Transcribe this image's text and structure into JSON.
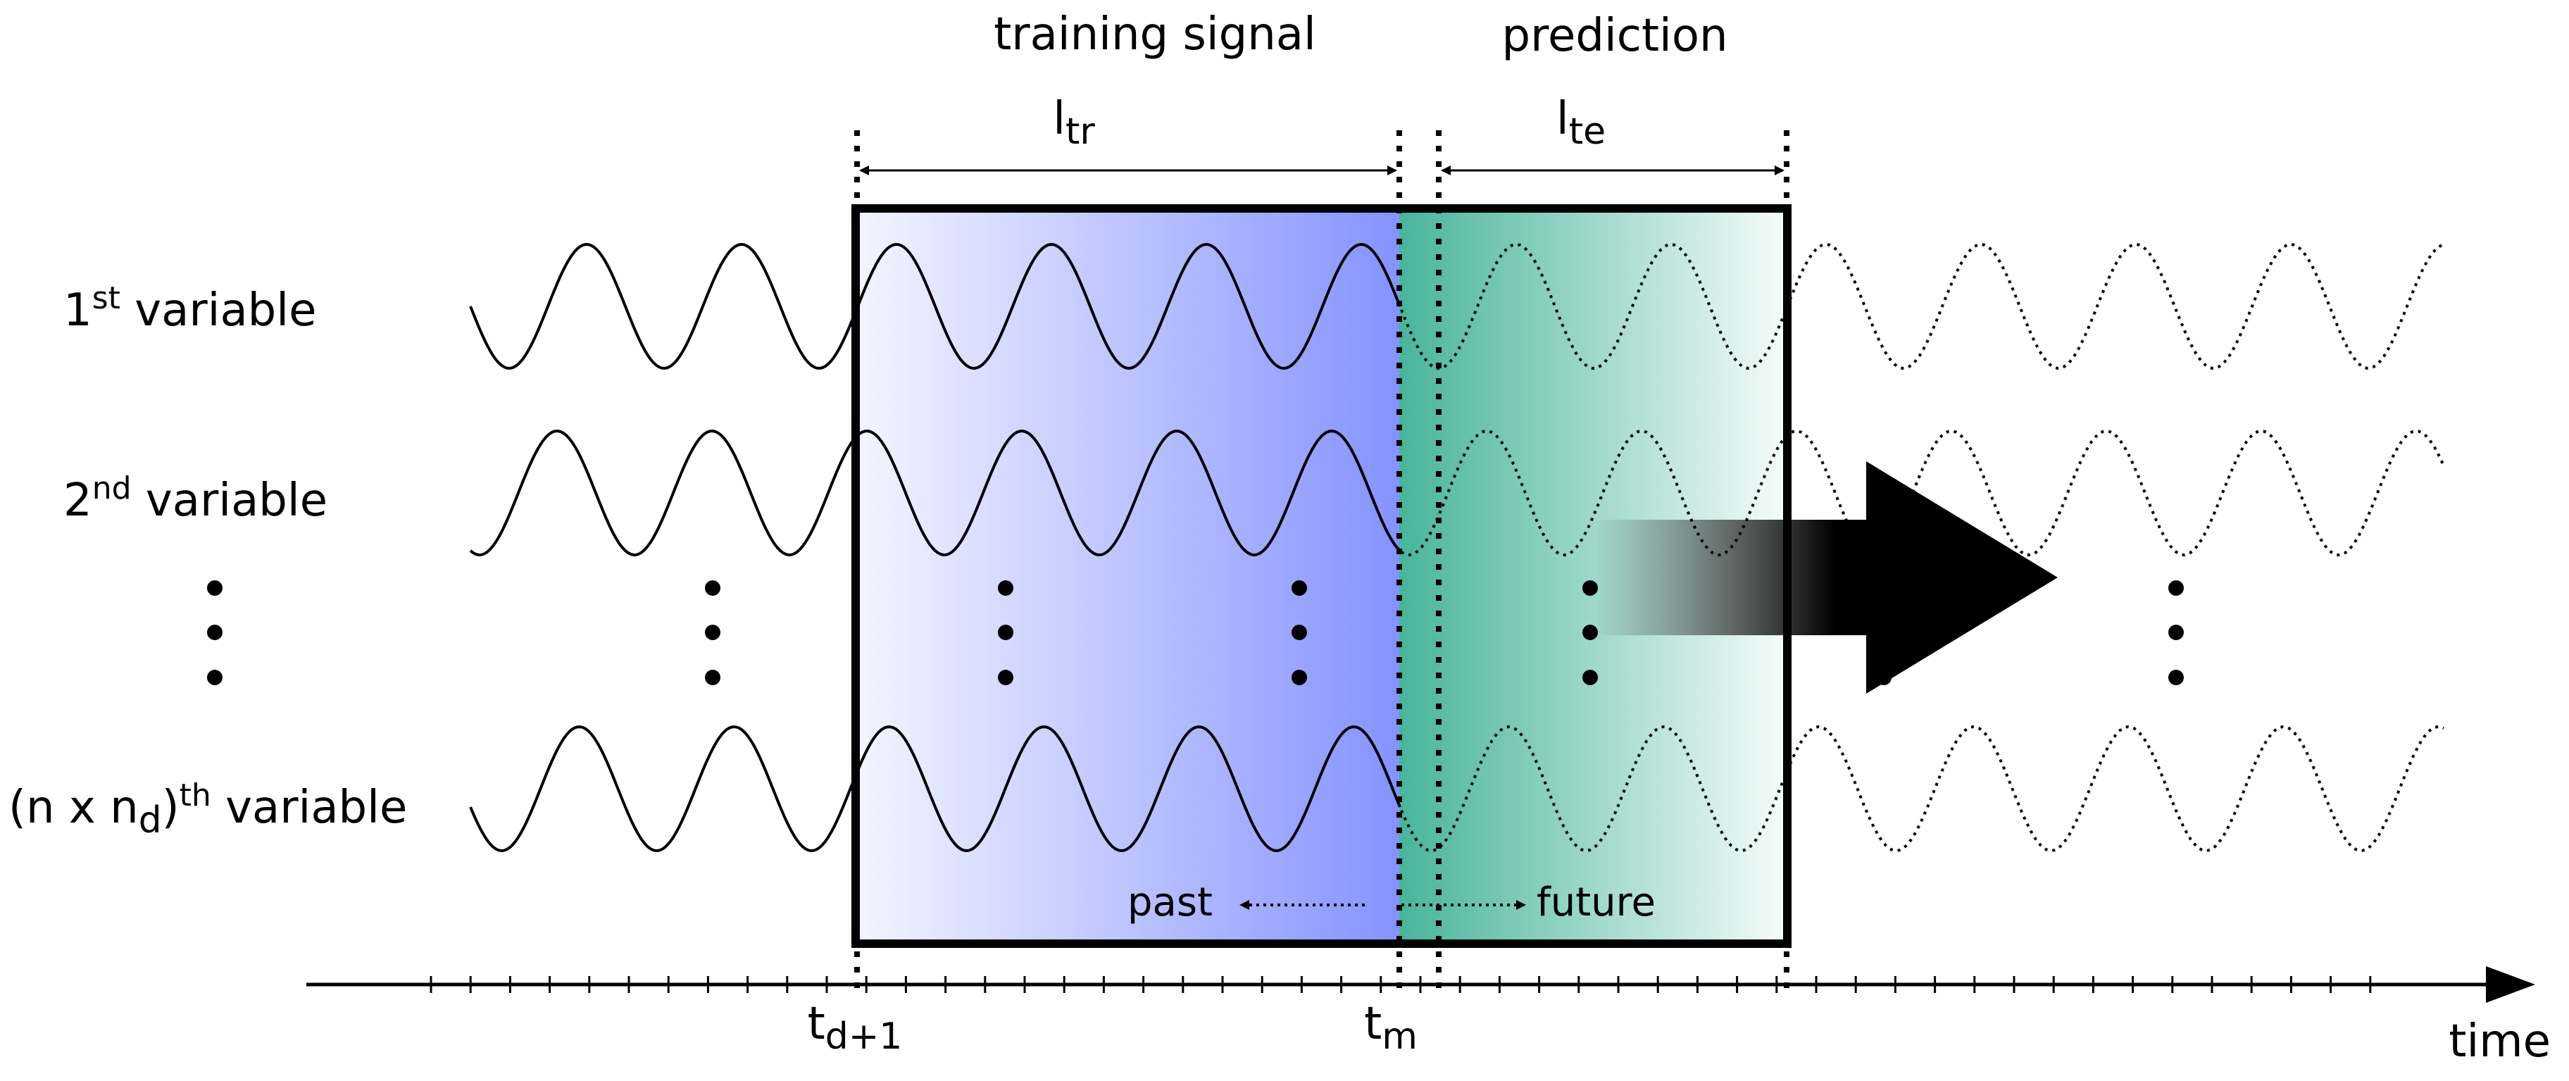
{
  "header": {
    "training_label": "training signal",
    "prediction_label": "prediction",
    "l_tr": {
      "base": "l",
      "sub": "tr"
    },
    "l_te": {
      "base": "l",
      "sub": "te"
    }
  },
  "variables": [
    {
      "base": "1",
      "sup": "st",
      "rest": " variable"
    },
    {
      "base": "2",
      "sup": "nd",
      "rest": " variable"
    },
    {
      "pre": "(n x n",
      "sub": "d",
      "mid": ")",
      "sup": "th",
      "rest": " variable"
    }
  ],
  "direction": {
    "past": "past",
    "future": "future"
  },
  "axis": {
    "label": "time",
    "tick_t_d1": {
      "base": "t",
      "sub": "d+1"
    },
    "tick_t_m": {
      "base": "t",
      "sub": "m"
    }
  },
  "colors": {
    "training_gradient_start": "#f4f5ff",
    "training_gradient_end": "#8592ff",
    "prediction_gradient_start": "#48b49c",
    "prediction_gradient_end": "#f6fcfa",
    "line": "#000000"
  }
}
